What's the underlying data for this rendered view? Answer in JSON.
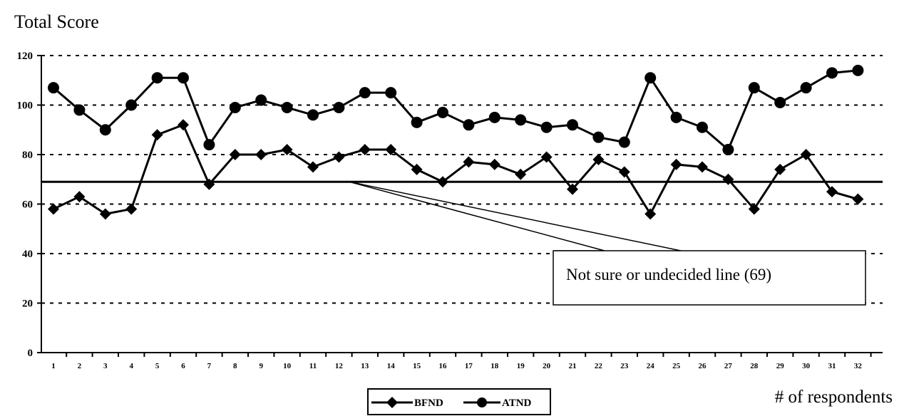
{
  "chart_data": {
    "type": "line",
    "ylabel": "Total Score",
    "xlabel": "# of respondents",
    "ylim": [
      0,
      120
    ],
    "yticks": [
      0,
      20,
      40,
      60,
      80,
      100,
      120
    ],
    "grid": "dotted horizontal",
    "categories": [
      "1",
      "2",
      "3",
      "4",
      "5",
      "6",
      "7",
      "8",
      "9",
      "10",
      "11",
      "12",
      "13",
      "14",
      "15",
      "16",
      "17",
      "18",
      "19",
      "20",
      "21",
      "22",
      "23",
      "24",
      "25",
      "26",
      "27",
      "28",
      "29",
      "30",
      "31",
      "32"
    ],
    "series": [
      {
        "name": "BFND",
        "marker": "diamond",
        "values": [
          58,
          63,
          56,
          58,
          88,
          92,
          68,
          80,
          80,
          82,
          75,
          79,
          82,
          82,
          74,
          69,
          77,
          76,
          72,
          79,
          66,
          78,
          73,
          56,
          76,
          75,
          70,
          58,
          74,
          80,
          65,
          62
        ]
      },
      {
        "name": "ATND",
        "marker": "circle",
        "values": [
          107,
          98,
          90,
          100,
          111,
          111,
          84,
          99,
          102,
          99,
          96,
          99,
          105,
          105,
          93,
          97,
          92,
          95,
          94,
          91,
          92,
          87,
          85,
          111,
          95,
          91,
          82,
          107,
          101,
          107,
          113,
          114
        ]
      }
    ],
    "reference_line": {
      "value": 69
    },
    "annotation": "Not sure or undecided line (69)",
    "legend": {
      "position": "bottom"
    }
  }
}
